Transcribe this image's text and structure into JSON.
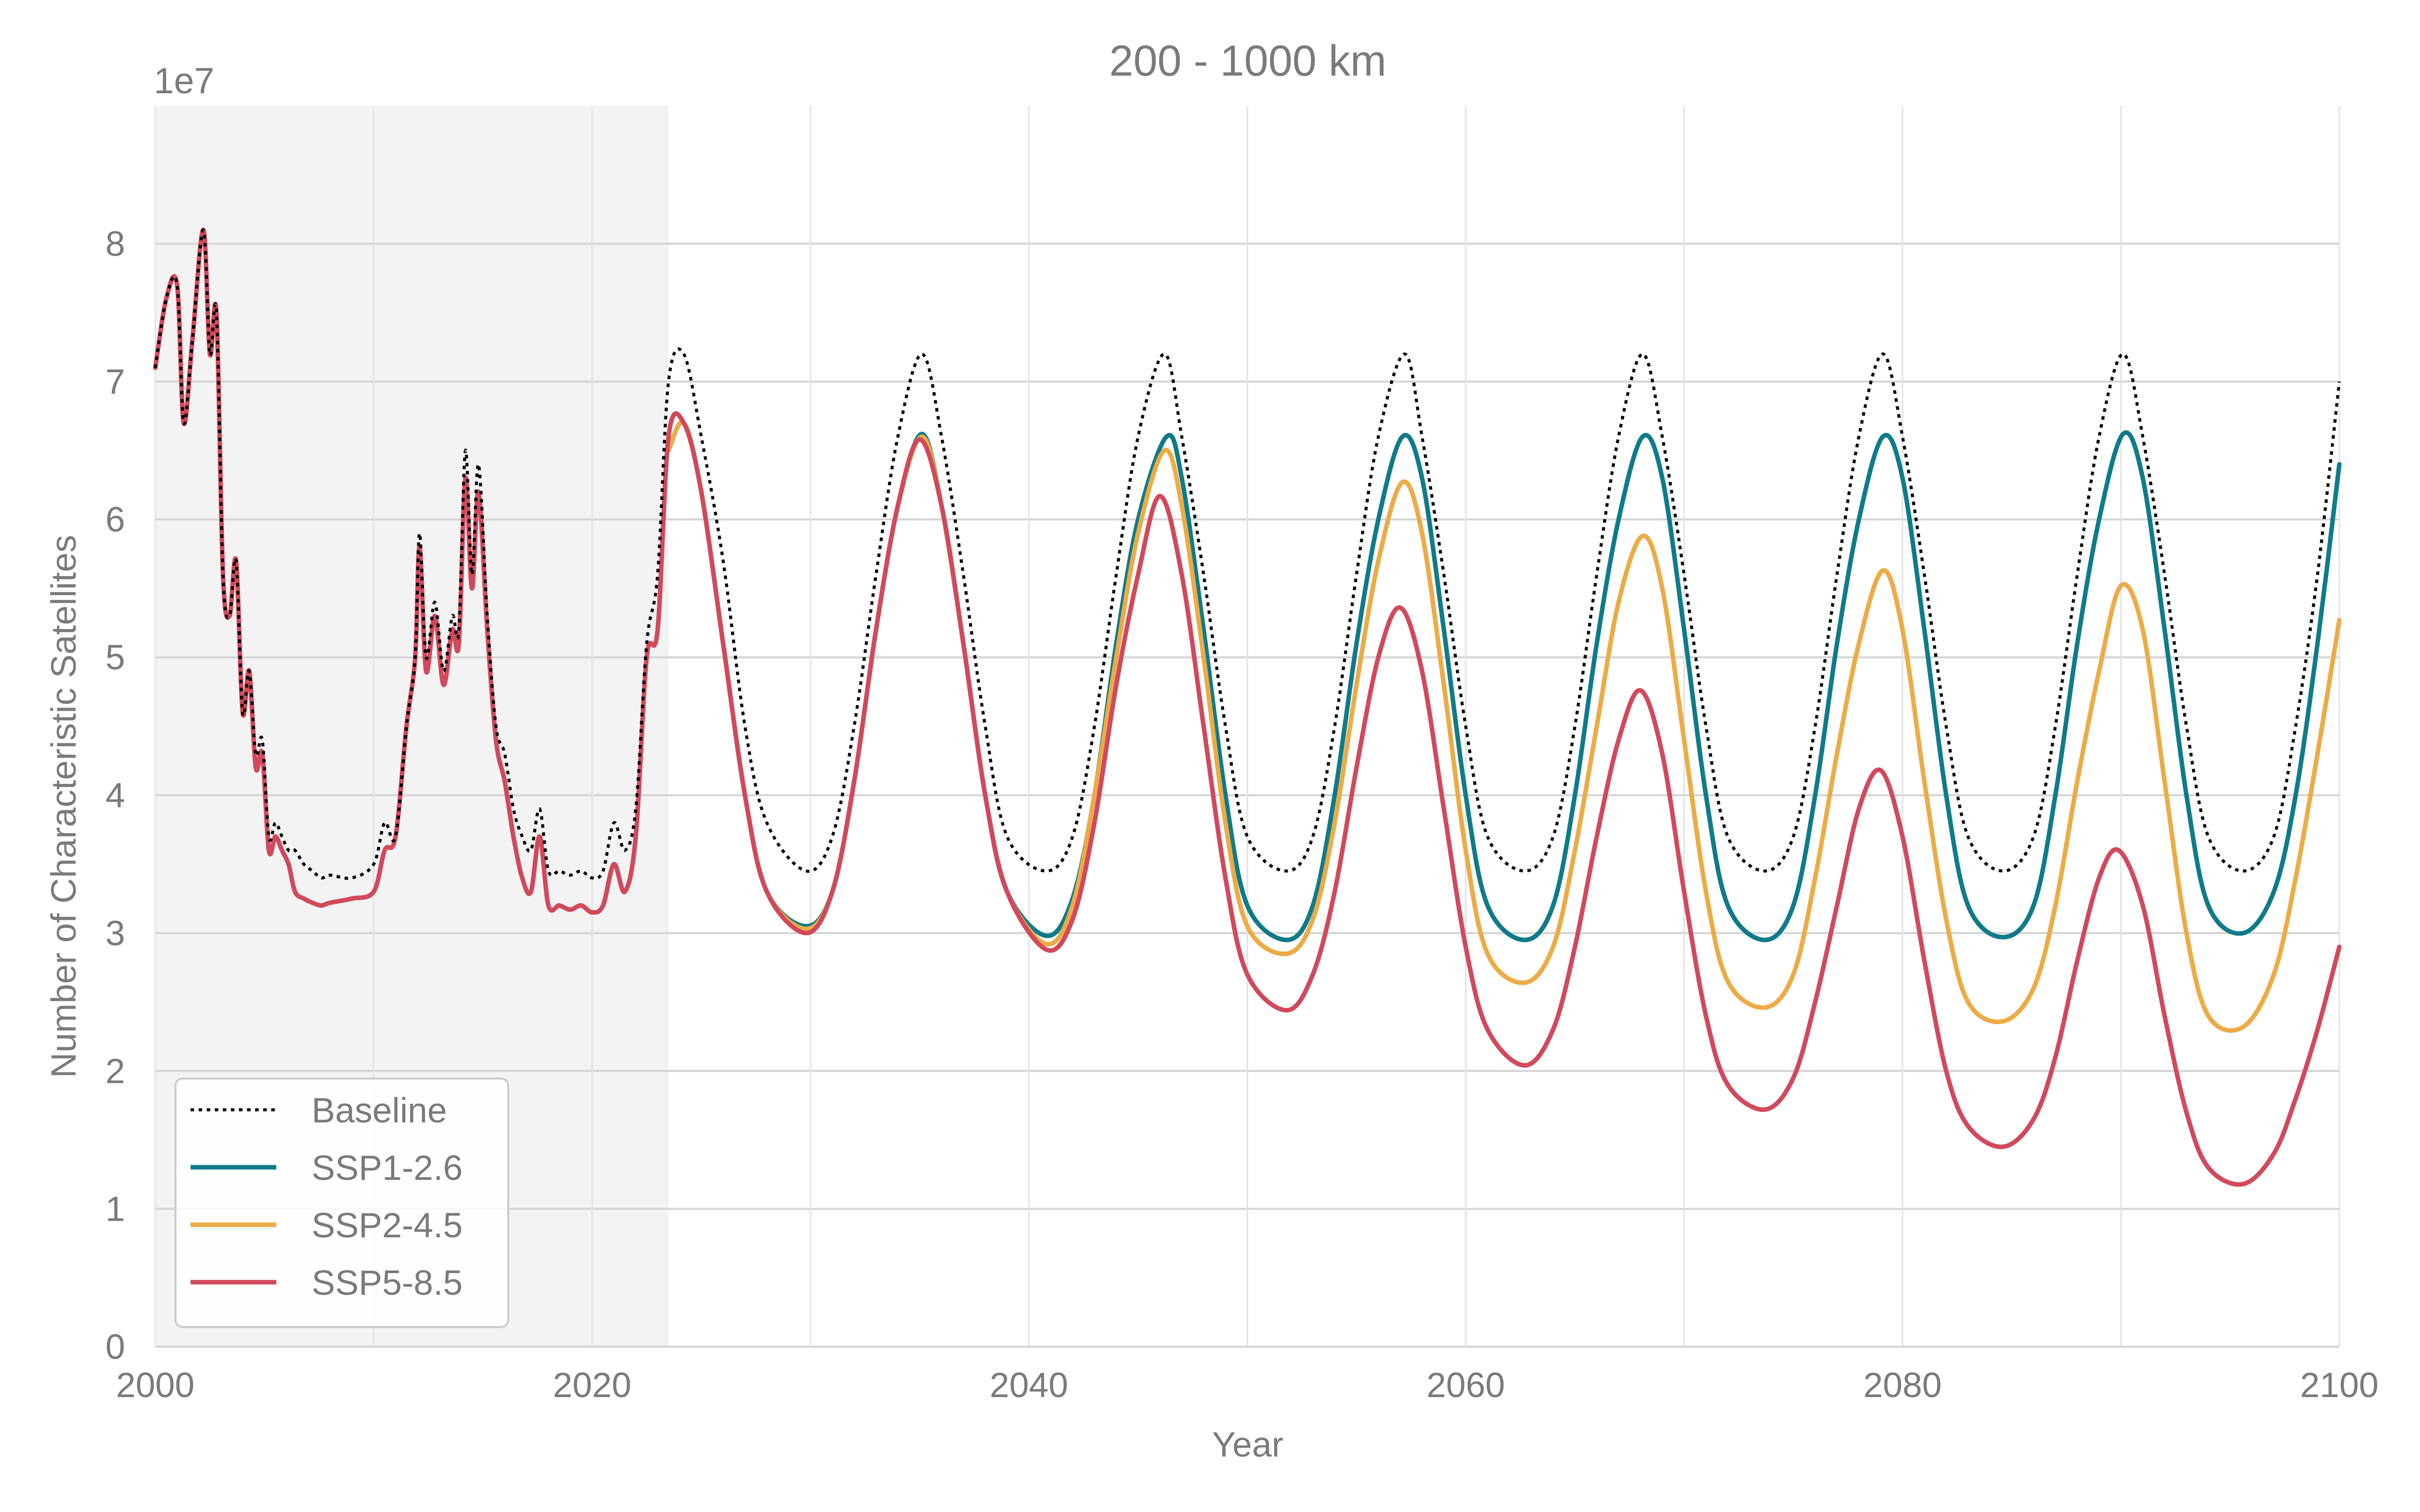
{
  "chart_data": {
    "type": "line",
    "title": "200 - 1000 km",
    "xlabel": "Year",
    "ylabel": "Number of Characteristic Satellites",
    "y_offset_label": "1e7",
    "xlim": [
      2000,
      2100
    ],
    "ylim": [
      0,
      9
    ],
    "x_ticks": [
      2000,
      2020,
      2040,
      2060,
      2080,
      2100
    ],
    "x_tick_labels": [
      "2000",
      "2020",
      "2040",
      "2060",
      "2080",
      "2100"
    ],
    "y_ticks": [
      0,
      1,
      2,
      3,
      4,
      5,
      6,
      7,
      8
    ],
    "y_tick_labels": [
      "0",
      "1",
      "2",
      "3",
      "4",
      "5",
      "6",
      "7",
      "8"
    ],
    "grid": true,
    "historical_shading": [
      2000,
      2023.5
    ],
    "legend_position": "lower-left",
    "colors": {
      "Baseline": "#000000",
      "SSP1-2.6": "#0f7b8a",
      "SSP2-4.5": "#ecab45",
      "SSP5-8.5": "#d1495b",
      "shading": "#f3f3f3",
      "grid": "#d4d4d4"
    },
    "series": [
      {
        "name": "Baseline",
        "style": "dotted",
        "x": [
          2000,
          2000.5,
          2001,
          2001.3,
          2001.7,
          2002.2,
          2002.5,
          2002.8,
          2003.1,
          2003.4,
          2003.7,
          2004,
          2004.3,
          2004.6,
          2004.9,
          2005.2,
          2005.5,
          2005.8,
          2006.1,
          2006.4,
          2006.8,
          2007.2,
          2007.6,
          2008,
          2009,
          2010,
          2010.5,
          2011,
          2011.5,
          2011.9,
          2012.1,
          2012.4,
          2012.8,
          2013.2,
          2013.6,
          2013.9,
          2014.2,
          2014.5,
          2014.8,
          2015.2,
          2015.6,
          2016,
          2016.4,
          2016.8,
          2017.2,
          2017.6,
          2018,
          2018.5,
          2019,
          2019.5,
          2020,
          2020.5,
          2021,
          2021.5,
          2022,
          2022.5,
          2023,
          2023.5,
          2024.2,
          2025,
          2026,
          2027,
          2028,
          2029.8,
          2031,
          2032,
          2033,
          2034,
          2035.1,
          2036,
          2037,
          2038,
          2039,
          2040.8,
          2042,
          2043,
          2044,
          2045,
          2046.2,
          2047,
          2048,
          2049,
          2050,
          2051.8,
          2053,
          2054,
          2055,
          2056,
          2057.2,
          2058,
          2059,
          2060,
          2061,
          2062.7,
          2064,
          2065,
          2066,
          2067,
          2068.1,
          2069,
          2070,
          2071,
          2072,
          2073.7,
          2075,
          2076,
          2077,
          2078,
          2079.1,
          2080,
          2081,
          2082,
          2083,
          2084.6,
          2086,
          2087,
          2088,
          2089,
          2090.1,
          2091,
          2092,
          2093,
          2094,
          2095.6,
          2097,
          2098,
          2099,
          2100
        ],
        "values": [
          7.1,
          7.6,
          7.7,
          6.7,
          7.3,
          8.1,
          7.2,
          7.5,
          5.6,
          5.3,
          5.7,
          4.6,
          4.9,
          4.3,
          4.4,
          3.7,
          3.8,
          3.7,
          3.6,
          3.6,
          3.5,
          3.45,
          3.4,
          3.42,
          3.4,
          3.5,
          3.8,
          3.7,
          4.5,
          5.0,
          5.9,
          5.0,
          5.4,
          4.9,
          5.3,
          5.2,
          6.5,
          5.6,
          6.4,
          5.3,
          4.5,
          4.3,
          3.9,
          3.7,
          3.6,
          3.9,
          3.45,
          3.45,
          3.42,
          3.45,
          3.4,
          3.45,
          3.8,
          3.6,
          3.9,
          5.1,
          5.6,
          7.0,
          7.2,
          6.6,
          5.7,
          4.5,
          3.8,
          3.45,
          3.7,
          4.5,
          5.6,
          6.6,
          7.2,
          6.6,
          5.6,
          4.5,
          3.7,
          3.45,
          3.7,
          4.5,
          5.6,
          6.6,
          7.2,
          6.6,
          5.6,
          4.5,
          3.7,
          3.45,
          3.7,
          4.5,
          5.6,
          6.6,
          7.2,
          6.6,
          5.6,
          4.5,
          3.7,
          3.45,
          3.7,
          4.5,
          5.6,
          6.6,
          7.2,
          6.6,
          5.6,
          4.5,
          3.7,
          3.45,
          3.7,
          4.5,
          5.6,
          6.6,
          7.2,
          6.6,
          5.6,
          4.5,
          3.7,
          3.45,
          3.7,
          4.5,
          5.6,
          6.6,
          7.2,
          6.6,
          5.6,
          4.5,
          3.7,
          3.45,
          3.7,
          4.5,
          5.6,
          7.0
        ]
      },
      {
        "name": "SSP1-2.6",
        "style": "solid",
        "x": [
          2023.5,
          2024.2,
          2025,
          2026,
          2027,
          2028,
          2029.8,
          2031,
          2032,
          2033,
          2034,
          2035.1,
          2036,
          2037,
          2038,
          2039,
          2040.8,
          2042,
          2043,
          2044,
          2045,
          2046.3,
          2047,
          2048,
          2049,
          2050,
          2051.8,
          2053,
          2054,
          2055,
          2056,
          2057.1,
          2058,
          2059,
          2060,
          2061,
          2062.7,
          2064,
          2065,
          2066,
          2067,
          2068.1,
          2069,
          2070,
          2071,
          2072,
          2073.7,
          2075,
          2076,
          2077,
          2078,
          2079.1,
          2080,
          2081,
          2082,
          2083,
          2084.6,
          2086,
          2087,
          2088,
          2089,
          2090.1,
          2091,
          2092,
          2093,
          2094,
          2095.6,
          2097,
          2098,
          2099,
          2100
        ],
        "values": [
          6.5,
          6.7,
          6.2,
          5.1,
          4.0,
          3.3,
          3.05,
          3.3,
          4.1,
          5.2,
          6.1,
          6.62,
          6.1,
          5.1,
          4.0,
          3.3,
          2.98,
          3.25,
          4.0,
          5.1,
          6.0,
          6.6,
          6.3,
          5.2,
          4.0,
          3.2,
          2.95,
          3.2,
          4.0,
          5.1,
          6.0,
          6.6,
          6.3,
          5.2,
          4.0,
          3.2,
          2.95,
          3.2,
          4.0,
          5.1,
          6.0,
          6.6,
          6.3,
          5.2,
          4.0,
          3.2,
          2.95,
          3.2,
          4.0,
          5.1,
          6.0,
          6.6,
          6.3,
          5.2,
          4.0,
          3.2,
          2.97,
          3.2,
          4.0,
          5.1,
          6.0,
          6.62,
          6.3,
          5.2,
          4.0,
          3.2,
          3.0,
          3.3,
          4.0,
          5.1,
          6.4
        ]
      },
      {
        "name": "SSP2-4.5",
        "style": "solid",
        "x": [
          2023.5,
          2024.2,
          2025,
          2026,
          2027,
          2028,
          2029.8,
          2031,
          2032,
          2033,
          2034,
          2035.1,
          2036,
          2037,
          2038,
          2039,
          2040.8,
          2042,
          2043,
          2044,
          2045,
          2046.2,
          2047,
          2048,
          2049,
          2050,
          2051.8,
          2053,
          2054,
          2055,
          2056,
          2057.1,
          2058,
          2059,
          2060,
          2061,
          2062.7,
          2064,
          2065,
          2066,
          2067,
          2068.1,
          2069,
          2070,
          2071,
          2072,
          2073.7,
          2075,
          2076,
          2077,
          2078,
          2079.1,
          2080,
          2081,
          2082,
          2083,
          2084.6,
          2086,
          2087,
          2088,
          2089,
          2090,
          2091,
          2092,
          2093,
          2094,
          2095.6,
          2097,
          2098,
          2099,
          2100
        ],
        "values": [
          6.5,
          6.7,
          6.2,
          5.1,
          4.0,
          3.3,
          3.03,
          3.3,
          4.1,
          5.2,
          6.1,
          6.6,
          6.1,
          5.1,
          4.0,
          3.3,
          2.92,
          3.2,
          4.0,
          5.0,
          5.9,
          6.5,
          6.1,
          5.0,
          3.8,
          3.05,
          2.85,
          3.1,
          3.8,
          4.8,
          5.7,
          6.27,
          5.9,
          4.8,
          3.6,
          2.85,
          2.64,
          2.9,
          3.6,
          4.5,
          5.4,
          5.88,
          5.5,
          4.4,
          3.3,
          2.65,
          2.46,
          2.7,
          3.4,
          4.3,
          5.1,
          5.63,
          5.2,
          4.1,
          3.1,
          2.5,
          2.36,
          2.6,
          3.2,
          4.1,
          4.9,
          5.52,
          5.2,
          4.1,
          3.0,
          2.4,
          2.32,
          2.7,
          3.4,
          4.3,
          5.27
        ]
      },
      {
        "name": "SSP5-8.5",
        "style": "solid",
        "x": [
          2000,
          2000.5,
          2001,
          2001.3,
          2001.7,
          2002.2,
          2002.5,
          2002.8,
          2003.1,
          2003.4,
          2003.7,
          2004,
          2004.3,
          2004.6,
          2004.9,
          2005.2,
          2005.5,
          2005.8,
          2006.1,
          2006.4,
          2006.8,
          2007.2,
          2007.6,
          2008,
          2009,
          2010,
          2010.5,
          2011,
          2011.5,
          2011.9,
          2012.1,
          2012.4,
          2012.8,
          2013.2,
          2013.6,
          2013.9,
          2014.2,
          2014.5,
          2014.8,
          2015.2,
          2015.6,
          2016,
          2016.4,
          2016.8,
          2017.2,
          2017.6,
          2018,
          2018.5,
          2019,
          2019.5,
          2020,
          2020.5,
          2021,
          2021.5,
          2022,
          2022.5,
          2023,
          2023.5,
          2024.2,
          2025,
          2026,
          2027,
          2028,
          2029.8,
          2031,
          2032,
          2033,
          2034,
          2035,
          2036,
          2037,
          2038,
          2039,
          2040.8,
          2042,
          2043,
          2044,
          2045,
          2046,
          2047,
          2048,
          2049,
          2050,
          2051.8,
          2053,
          2054,
          2055,
          2056,
          2057,
          2058,
          2059,
          2060,
          2061,
          2062.7,
          2064,
          2065,
          2066,
          2067,
          2068,
          2069,
          2070,
          2071,
          2072,
          2073.7,
          2075,
          2076,
          2077,
          2078,
          2079,
          2080,
          2081,
          2082,
          2083,
          2084.6,
          2086,
          2087,
          2088,
          2089,
          2089.9,
          2091,
          2092,
          2093,
          2094,
          2095.6,
          2097,
          2098,
          2099,
          2100
        ],
        "values": [
          7.1,
          7.6,
          7.7,
          6.7,
          7.3,
          8.1,
          7.2,
          7.5,
          5.6,
          5.3,
          5.7,
          4.6,
          4.9,
          4.2,
          4.3,
          3.6,
          3.7,
          3.6,
          3.5,
          3.3,
          3.25,
          3.22,
          3.2,
          3.22,
          3.25,
          3.3,
          3.6,
          3.7,
          4.5,
          5.0,
          5.8,
          4.9,
          5.3,
          4.8,
          5.2,
          5.1,
          6.3,
          5.5,
          6.2,
          5.2,
          4.4,
          4.1,
          3.7,
          3.4,
          3.3,
          3.7,
          3.2,
          3.2,
          3.17,
          3.2,
          3.15,
          3.2,
          3.5,
          3.3,
          3.7,
          5.0,
          5.2,
          6.6,
          6.7,
          6.2,
          5.1,
          4.0,
          3.3,
          3.0,
          3.3,
          4.1,
          5.2,
          6.1,
          6.58,
          6.1,
          5.1,
          4.0,
          3.3,
          2.88,
          3.1,
          3.8,
          4.8,
          5.6,
          6.17,
          5.6,
          4.5,
          3.4,
          2.7,
          2.44,
          2.7,
          3.3,
          4.2,
          5.0,
          5.36,
          4.9,
          3.9,
          2.9,
          2.3,
          2.04,
          2.3,
          2.9,
          3.7,
          4.4,
          4.76,
          4.3,
          3.3,
          2.4,
          1.9,
          1.72,
          1.95,
          2.5,
          3.2,
          3.9,
          4.18,
          3.7,
          2.8,
          2.0,
          1.6,
          1.45,
          1.65,
          2.1,
          2.8,
          3.4,
          3.6,
          3.2,
          2.4,
          1.7,
          1.3,
          1.18,
          1.4,
          1.8,
          2.3,
          2.9
        ]
      }
    ]
  }
}
